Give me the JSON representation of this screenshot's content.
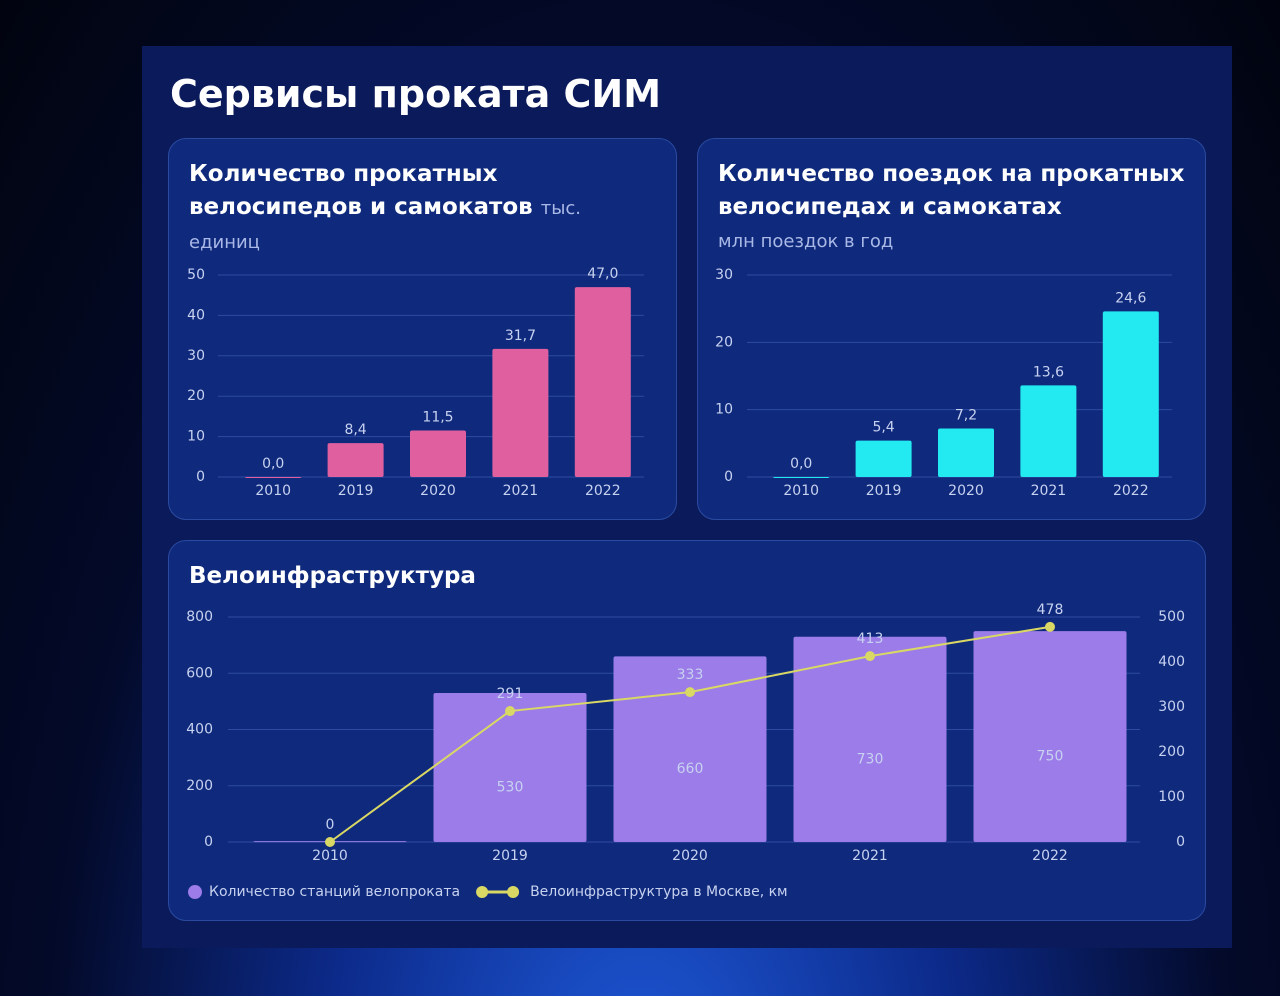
{
  "title": "Сервисы проката СИМ",
  "chart_data": [
    {
      "type": "bar",
      "title": "Количество прокатных велосипедов и самокатов",
      "subtitle": "тыс. единиц",
      "categories": [
        "2010",
        "2019",
        "2020",
        "2021",
        "2022"
      ],
      "values": [
        0,
        8.4,
        11.5,
        31.7,
        47
      ],
      "value_labels": [
        "0,0",
        "8,4",
        "11,5",
        "31,7",
        "47,0"
      ],
      "color": "#e0609f",
      "ylim": [
        0,
        50
      ],
      "yticks": [
        0,
        10,
        20,
        30,
        40,
        50
      ],
      "grid": true
    },
    {
      "type": "bar",
      "title": "Количество поездок на прокатных велосипедах и самокатах",
      "subtitle": "млн поездок в год",
      "categories": [
        "2010",
        "2019",
        "2020",
        "2021",
        "2022"
      ],
      "values": [
        0,
        5.4,
        7.2,
        13.6,
        24.6
      ],
      "value_labels": [
        "0,0",
        "5,4",
        "7,2",
        "13,6",
        "24,6"
      ],
      "color": "#22eaf0",
      "ylim": [
        0,
        30
      ],
      "yticks": [
        0,
        10,
        20,
        30
      ],
      "grid": true
    },
    {
      "type": "combo",
      "title": "Велоинфраструктура",
      "categories": [
        "2010",
        "2019",
        "2020",
        "2021",
        "2022"
      ],
      "series": [
        {
          "name": "Количество станций велопроката",
          "type": "bar",
          "color": "#9b7ce8",
          "values": [
            3,
            530,
            660,
            730,
            750
          ],
          "value_labels": [
            null,
            "530",
            "660",
            "730",
            "750"
          ]
        },
        {
          "name": "Велоинфраструктура в Москве, км",
          "type": "line",
          "axis": "y2",
          "color": "#d9d864",
          "values": [
            0,
            291,
            333,
            413,
            478
          ]
        }
      ],
      "ylim": [
        0,
        800
      ],
      "yticks": [
        0,
        200,
        400,
        600,
        800
      ],
      "y2lim": [
        0,
        500
      ],
      "y2ticks": [
        0,
        100,
        200,
        300,
        400,
        500
      ],
      "grid": true,
      "legend": "bottom"
    }
  ]
}
